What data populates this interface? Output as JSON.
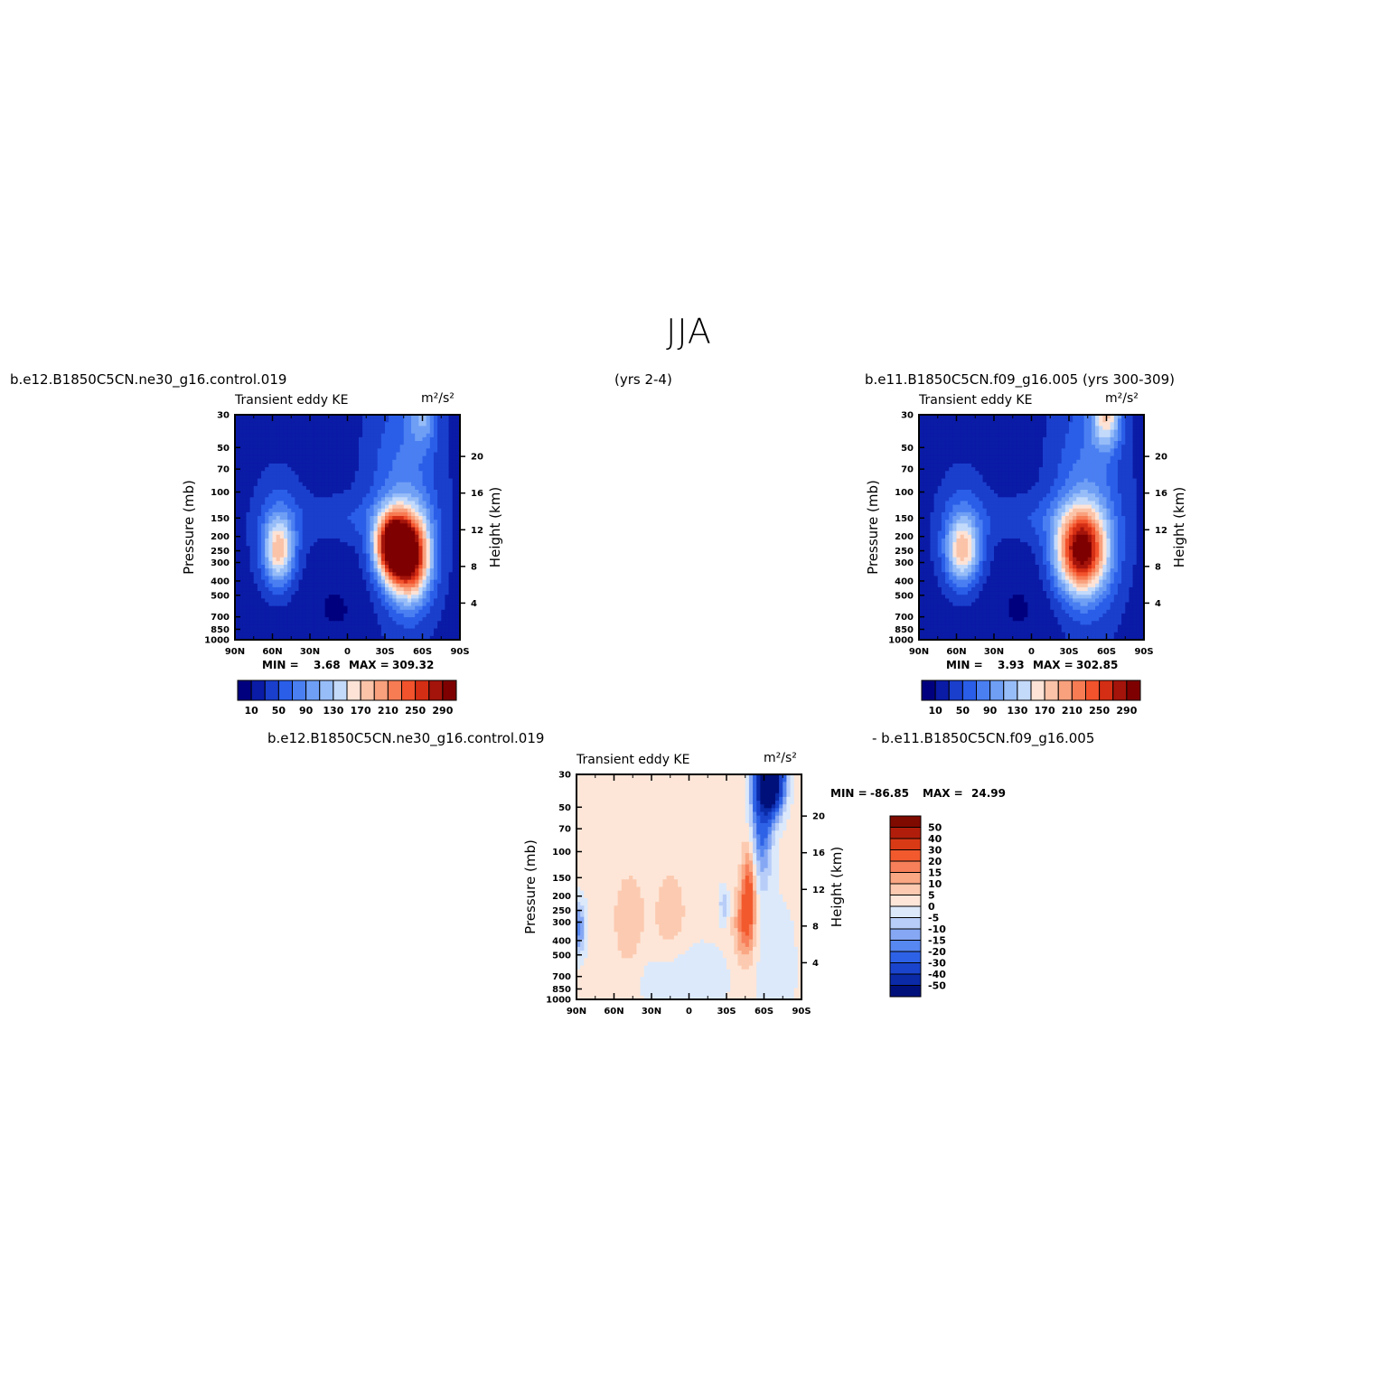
{
  "page": {
    "title": "JJA"
  },
  "headers": {
    "left_case": "b.e12.B1850C5CN.ne30_g16.control.019",
    "left_years": "(yrs 2-4)",
    "right_case": "b.e11.B1850C5CN.f09_g16.005 (yrs 300-309)",
    "diff_case_a": "b.e12.B1850C5CN.ne30_g16.control.019",
    "diff_case_b": "- b.e11.B1850C5CN.f09_g16.005"
  },
  "colors": {
    "abs_scale": [
      "#00007f",
      "#0a1ba6",
      "#1a3fcc",
      "#2a5ee8",
      "#4a7ff2",
      "#6f9ff5",
      "#97bdf8",
      "#c3dafb",
      "#fde3d6",
      "#fbc3a8",
      "#f9a07d",
      "#f77b53",
      "#f2522c",
      "#d42e14",
      "#a4140b",
      "#7f0000"
    ],
    "diff_scale": [
      "#00107a",
      "#0a2aa8",
      "#1a44cc",
      "#2e62e6",
      "#5787f0",
      "#86a8f4",
      "#b8cef8",
      "#dce9fb",
      "#fde6d8",
      "#fccab0",
      "#faa784",
      "#f7805a",
      "#f25a2e",
      "#d93a16",
      "#b01e0b",
      "#7f0a00"
    ]
  },
  "chart_data": [
    {
      "type": "heatmap",
      "title": "Transient eddy KE",
      "units": "m²/s²",
      "ylabel": "Pressure (mb)",
      "ylabel_right": "Height (km)",
      "x_ticks": [
        "90N",
        "60N",
        "30N",
        "0",
        "30S",
        "60S",
        "90S"
      ],
      "x_values": [
        90,
        60,
        30,
        0,
        -30,
        -60,
        -90
      ],
      "xlim": [
        90,
        -90
      ],
      "y_ticks": [
        "30",
        "50",
        "70",
        "100",
        "150",
        "200",
        "250",
        "300",
        "400",
        "500",
        "700",
        "850",
        "1000"
      ],
      "y_values": [
        30,
        50,
        70,
        100,
        150,
        200,
        250,
        300,
        400,
        500,
        700,
        850,
        1000
      ],
      "ylim": [
        30,
        1000
      ],
      "y_scale": "log",
      "y_right_ticks": [
        "20",
        "16",
        "12",
        "8",
        "4"
      ],
      "y_right_values": [
        20,
        16,
        12,
        8,
        4
      ],
      "min_label": "MIN =",
      "min_value": "3.68",
      "max_label": "MAX =",
      "max_value": "309.32",
      "colorbar_ticks": [
        "10",
        "50",
        "90",
        "130",
        "170",
        "210",
        "250",
        "290"
      ],
      "colorbar_levels": [
        10,
        30,
        50,
        70,
        90,
        110,
        130,
        150,
        170,
        190,
        210,
        230,
        250,
        270,
        290
      ],
      "features": [
        {
          "lat": -50,
          "p": 270,
          "value": 300
        },
        {
          "lat": -35,
          "p": 230,
          "value": 290
        },
        {
          "lat": 55,
          "p": 250,
          "value": 170
        },
        {
          "lat": -60,
          "p": 30,
          "value": 110
        }
      ]
    },
    {
      "type": "heatmap",
      "title": "Transient eddy KE",
      "units": "m²/s²",
      "ylabel": "Pressure (mb)",
      "ylabel_right": "Height (km)",
      "x_ticks": [
        "90N",
        "60N",
        "30N",
        "0",
        "30S",
        "60S",
        "90S"
      ],
      "x_values": [
        90,
        60,
        30,
        0,
        -30,
        -60,
        -90
      ],
      "xlim": [
        90,
        -90
      ],
      "y_ticks": [
        "30",
        "50",
        "70",
        "100",
        "150",
        "200",
        "250",
        "300",
        "400",
        "500",
        "700",
        "850",
        "1000"
      ],
      "y_values": [
        30,
        50,
        70,
        100,
        150,
        200,
        250,
        300,
        400,
        500,
        700,
        850,
        1000
      ],
      "ylim": [
        30,
        1000
      ],
      "y_scale": "log",
      "y_right_ticks": [
        "20",
        "16",
        "12",
        "8",
        "4"
      ],
      "y_right_values": [
        20,
        16,
        12,
        8,
        4
      ],
      "min_label": "MIN =",
      "min_value": "3.93",
      "max_label": "MAX =",
      "max_value": "302.85",
      "colorbar_ticks": [
        "10",
        "50",
        "90",
        "130",
        "170",
        "210",
        "250",
        "290"
      ],
      "colorbar_levels": [
        10,
        30,
        50,
        70,
        90,
        110,
        130,
        150,
        170,
        190,
        210,
        230,
        250,
        270,
        290
      ],
      "features": [
        {
          "lat": -40,
          "p": 250,
          "value": 290
        },
        {
          "lat": 55,
          "p": 250,
          "value": 170
        },
        {
          "lat": -60,
          "p": 30,
          "value": 170
        }
      ]
    },
    {
      "type": "heatmap",
      "title": "Transient eddy KE",
      "units": "m²/s²",
      "ylabel": "Pressure (mb)",
      "ylabel_right": "Height (km)",
      "x_ticks": [
        "90N",
        "60N",
        "30N",
        "0",
        "30S",
        "60S",
        "90S"
      ],
      "x_values": [
        90,
        60,
        30,
        0,
        -30,
        -60,
        -90
      ],
      "xlim": [
        90,
        -90
      ],
      "y_ticks": [
        "30",
        "50",
        "70",
        "100",
        "150",
        "200",
        "250",
        "300",
        "400",
        "500",
        "700",
        "850",
        "1000"
      ],
      "y_values": [
        30,
        50,
        70,
        100,
        150,
        200,
        250,
        300,
        400,
        500,
        700,
        850,
        1000
      ],
      "ylim": [
        30,
        1000
      ],
      "y_scale": "log",
      "y_right_ticks": [
        "20",
        "16",
        "12",
        "8",
        "4"
      ],
      "y_right_values": [
        20,
        16,
        12,
        8,
        4
      ],
      "min_label": "MIN =",
      "min_value": "-86.85",
      "max_label": "MAX =",
      "max_value": "24.99",
      "colorbar_ticks": [
        "50",
        "40",
        "30",
        "20",
        "15",
        "10",
        "5",
        "0",
        "-5",
        "-10",
        "-15",
        "-20",
        "-30",
        "-40",
        "-50"
      ],
      "colorbar_levels": [
        50,
        40,
        30,
        20,
        15,
        10,
        5,
        0,
        -5,
        -10,
        -15,
        -20,
        -30,
        -40,
        -50
      ],
      "features": [
        {
          "lat": -65,
          "p": 35,
          "value": -86.85
        },
        {
          "lat": -48,
          "p": 200,
          "value": 25
        },
        {
          "lat": 88,
          "p": 330,
          "value": -20
        }
      ]
    }
  ]
}
